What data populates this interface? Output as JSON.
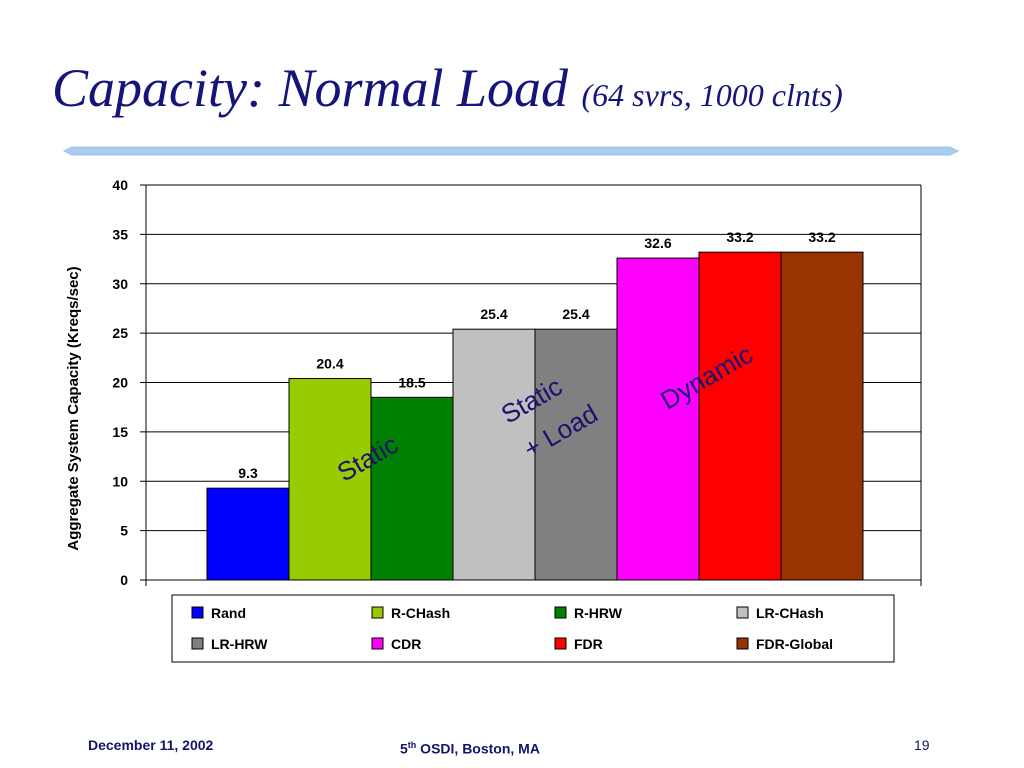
{
  "slide": {
    "title_main": "Capacity: Normal Load",
    "title_sub": "(64 svrs, 1000 clnts)",
    "footer_left": "December 11, 2002",
    "footer_center_num": "5",
    "footer_center_sup": "th",
    "footer_center_rest": " OSDI, Boston, MA",
    "page_number": "19",
    "colors": {
      "title": "#14147a",
      "divider": "#a9cdf2",
      "footer": "#12156b"
    }
  },
  "chart_data": {
    "type": "bar",
    "title": "",
    "xlabel": "",
    "ylabel": "Aggregate System Capacity (Kreqs/sec)",
    "ylim": [
      0,
      40
    ],
    "yticks": [
      0,
      5,
      10,
      15,
      20,
      25,
      30,
      35,
      40
    ],
    "grid": true,
    "legend_position": "bottom",
    "series": [
      {
        "name": "Rand",
        "value": 9.3,
        "color": "#0000ff"
      },
      {
        "name": "R-CHash",
        "value": 20.4,
        "color": "#99cc00"
      },
      {
        "name": "R-HRW",
        "value": 18.5,
        "color": "#008000"
      },
      {
        "name": "LR-CHash",
        "value": 25.4,
        "color": "#c0c0c0"
      },
      {
        "name": "LR-HRW",
        "value": 25.4,
        "color": "#808080"
      },
      {
        "name": "CDR",
        "value": 32.6,
        "color": "#ff00ff"
      },
      {
        "name": "FDR",
        "value": 33.2,
        "color": "#ff0000"
      },
      {
        "name": "FDR-Global",
        "value": 33.2,
        "color": "#993300"
      }
    ],
    "annotations": [
      {
        "text": "Static"
      },
      {
        "text": "Static"
      },
      {
        "text": "+ Load"
      },
      {
        "text": "Dynamic"
      }
    ]
  }
}
